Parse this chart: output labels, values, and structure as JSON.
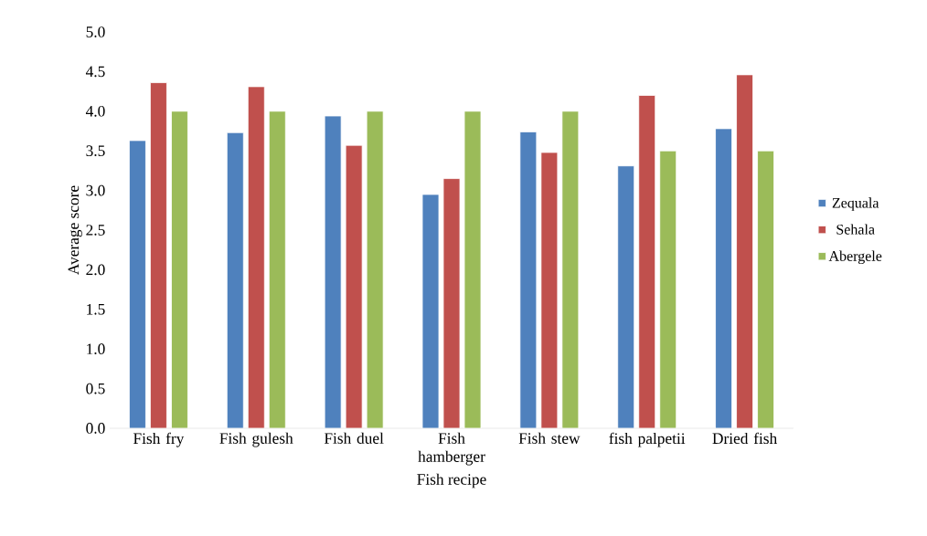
{
  "chart_data": {
    "type": "bar",
    "xlabel": "Fish recipe",
    "ylabel": "Average score",
    "categories": [
      "Fish fry",
      "Fish gulesh",
      "Fish duel",
      "Fish hamberger",
      "Fish stew",
      "fish palpetii",
      "Dried fish"
    ],
    "series": [
      {
        "name": "Zequala",
        "color": "#4f81bd",
        "values": [
          3.63,
          3.73,
          3.94,
          2.95,
          3.74,
          3.31,
          3.78
        ]
      },
      {
        "name": "Sehala",
        "color": "#c0504d",
        "values": [
          4.36,
          4.31,
          3.57,
          3.15,
          3.48,
          4.2,
          4.46
        ]
      },
      {
        "name": "Abergele",
        "color": "#9bbb59",
        "values": [
          4.0,
          4.0,
          4.0,
          4.0,
          4.0,
          3.5,
          3.5
        ]
      }
    ],
    "ylim": [
      0,
      5
    ],
    "yticks": [
      {
        "value": 0,
        "label": "0.0"
      },
      {
        "value": 0.5,
        "label": "0.5"
      },
      {
        "value": 1,
        "label": "1.0"
      },
      {
        "value": 1.5,
        "label": "1.5"
      },
      {
        "value": 2,
        "label": "2.0"
      },
      {
        "value": 2.5,
        "label": "2.5"
      },
      {
        "value": 3,
        "label": "3.0"
      },
      {
        "value": 3.5,
        "label": "3.5"
      },
      {
        "value": 4,
        "label": "4.0"
      },
      {
        "value": 4.5,
        "label": "4.5"
      },
      {
        "value": 5,
        "label": "5.0"
      }
    ],
    "legend": "right"
  }
}
